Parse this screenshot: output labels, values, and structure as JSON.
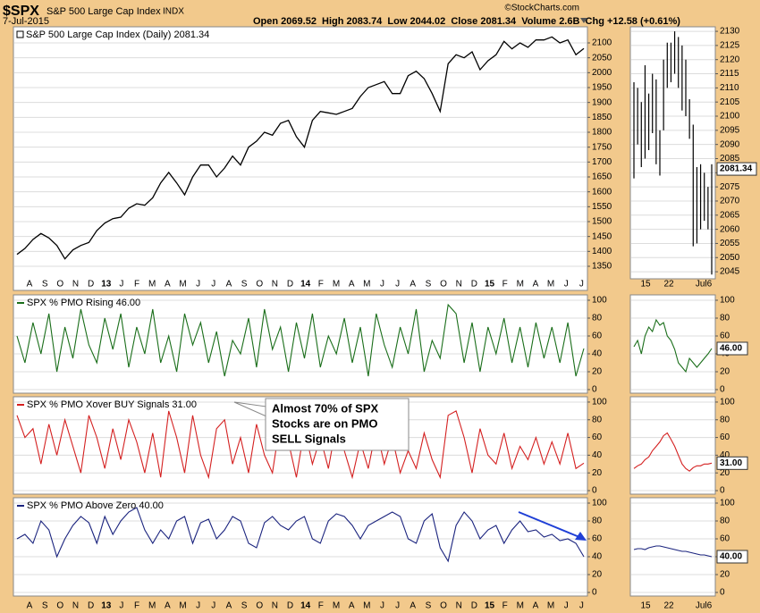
{
  "header": {
    "symbol": "$SPX",
    "name": "S&P 500 Large Cap Index",
    "exchange": "INDX",
    "date": "7-Jul-2015",
    "quote": "Open 2069.52  High 2083.74  Low 2044.02  Close 2081.34  Volume 2.6B  Chg +12.58 (+0.61%)",
    "copyright": "©StockCharts.com"
  },
  "month_labels": [
    "A",
    "S",
    "O",
    "N",
    "D",
    "13",
    "J",
    "F",
    "M",
    "A",
    "M",
    "J",
    "J",
    "A",
    "S",
    "O",
    "N",
    "D",
    "14",
    "F",
    "M",
    "A",
    "M",
    "J",
    "J",
    "A",
    "S",
    "O",
    "N",
    "D",
    "15",
    "F",
    "M",
    "A",
    "M",
    "J",
    "J"
  ],
  "mini_labels": [
    "15",
    "22",
    "Jul6"
  ],
  "chart_data": [
    {
      "type": "line",
      "title": "S&P 500 Large Cap Index (Daily) 2081.34",
      "color": "#000000",
      "ylim": [
        1269,
        2154
      ],
      "yticks": [
        1350,
        1400,
        1450,
        1500,
        1550,
        1600,
        1650,
        1700,
        1750,
        1800,
        1850,
        1900,
        1950,
        2000,
        2050,
        2100
      ],
      "grid": true,
      "values": [
        1390,
        1410,
        1440,
        1460,
        1445,
        1420,
        1375,
        1405,
        1420,
        1430,
        1470,
        1495,
        1510,
        1515,
        1545,
        1560,
        1555,
        1580,
        1630,
        1665,
        1630,
        1590,
        1650,
        1690,
        1690,
        1650,
        1680,
        1720,
        1690,
        1750,
        1770,
        1800,
        1790,
        1830,
        1840,
        1785,
        1750,
        1840,
        1870,
        1865,
        1860,
        1870,
        1880,
        1920,
        1950,
        1960,
        1970,
        1930,
        1930,
        1990,
        2005,
        1980,
        1930,
        1870,
        2030,
        2060,
        2050,
        2070,
        2010,
        2040,
        2060,
        2105,
        2080,
        2100,
        2085,
        2110,
        2110,
        2120,
        2100,
        2110,
        2060,
        2081.34
      ]
    },
    {
      "type": "ohlc",
      "color": "#000000",
      "ylim": [
        2042.5,
        2131.6
      ],
      "yticks": [
        2045,
        2050,
        2055,
        2060,
        2065,
        2070,
        2075,
        2080,
        2085,
        2090,
        2095,
        2100,
        2105,
        2110,
        2115,
        2120,
        2125,
        2130
      ],
      "grid": true,
      "highs": [
        2112,
        2110,
        2105,
        2118,
        2108,
        2115,
        2113,
        2095,
        2120,
        2126,
        2126,
        2130,
        2128,
        2125,
        2120,
        2106,
        2097,
        2082,
        2083,
        2080,
        2075,
        2083
      ],
      "lows": [
        2078,
        2090,
        2082,
        2085,
        2088,
        2094,
        2083,
        2079,
        2095,
        2110,
        2112,
        2115,
        2110,
        2102,
        2100,
        2092,
        2054,
        2055,
        2060,
        2063,
        2060,
        2044
      ],
      "last_value": 2081.34
    },
    {
      "type": "line",
      "title": "SPX % PMO Rising 46.00",
      "color": "#1a6e1a",
      "ylim": [
        -4,
        106
      ],
      "yticks": [
        0,
        20,
        40,
        60,
        80,
        100
      ],
      "grid": true,
      "values": [
        60,
        30,
        75,
        40,
        85,
        20,
        70,
        35,
        90,
        50,
        30,
        80,
        45,
        85,
        25,
        70,
        40,
        90,
        30,
        60,
        20,
        85,
        50,
        75,
        30,
        65,
        15,
        55,
        40,
        80,
        25,
        90,
        45,
        70,
        20,
        75,
        35,
        85,
        25,
        60,
        40,
        80,
        30,
        70,
        15,
        85,
        50,
        25,
        70,
        40,
        90,
        20,
        55,
        35,
        95,
        85,
        30,
        75,
        20,
        70,
        40,
        80,
        30,
        70,
        25,
        75,
        35,
        70,
        30,
        75,
        15,
        46
      ]
    },
    {
      "type": "line",
      "color": "#1a6e1a",
      "ylim": [
        -4,
        106
      ],
      "yticks": [
        0,
        20,
        40,
        60,
        80,
        100
      ],
      "grid": true,
      "values": [
        48,
        55,
        40,
        60,
        70,
        65,
        78,
        72,
        75,
        60,
        55,
        45,
        30,
        25,
        20,
        35,
        30,
        25,
        30,
        35,
        40,
        46
      ],
      "last_value": {
        "value": 46,
        "label": "46.00"
      }
    },
    {
      "type": "line",
      "title": "SPX % PMO Xover BUY Signals 31.00",
      "color": "#d42020",
      "ylim": [
        -4,
        106
      ],
      "yticks": [
        0,
        20,
        40,
        60,
        80,
        100
      ],
      "grid": true,
      "values": [
        85,
        60,
        70,
        30,
        75,
        40,
        80,
        50,
        20,
        85,
        60,
        25,
        70,
        35,
        80,
        55,
        20,
        65,
        15,
        90,
        60,
        20,
        85,
        40,
        15,
        70,
        80,
        30,
        60,
        20,
        75,
        40,
        20,
        80,
        55,
        15,
        70,
        30,
        60,
        25,
        75,
        45,
        15,
        55,
        25,
        70,
        30,
        60,
        20,
        45,
        25,
        65,
        35,
        15,
        85,
        90,
        60,
        20,
        70,
        40,
        30,
        65,
        25,
        50,
        35,
        60,
        30,
        55,
        30,
        65,
        25,
        31
      ],
      "annotation": [
        "Almost 70% of SPX",
        "Stocks are on PMO",
        "SELL Signals"
      ]
    },
    {
      "type": "line",
      "color": "#d42020",
      "ylim": [
        -4,
        106
      ],
      "yticks": [
        0,
        20,
        40,
        60,
        80,
        100
      ],
      "grid": true,
      "values": [
        25,
        28,
        30,
        35,
        38,
        45,
        50,
        55,
        62,
        65,
        58,
        50,
        40,
        30,
        25,
        22,
        26,
        28,
        28,
        30,
        30,
        31
      ],
      "last_value": {
        "value": 31,
        "label": "31.00"
      }
    },
    {
      "type": "line",
      "title": "SPX % PMO Above Zero 40.00",
      "color": "#1a237e",
      "ylim": [
        -4,
        106
      ],
      "yticks": [
        0,
        20,
        40,
        60,
        80,
        100
      ],
      "grid": true,
      "values": [
        60,
        65,
        55,
        80,
        70,
        40,
        60,
        75,
        85,
        78,
        55,
        85,
        65,
        80,
        90,
        95,
        70,
        55,
        70,
        60,
        80,
        85,
        55,
        78,
        82,
        60,
        70,
        85,
        80,
        55,
        50,
        78,
        85,
        75,
        70,
        80,
        85,
        60,
        55,
        80,
        88,
        85,
        75,
        60,
        75,
        80,
        85,
        90,
        85,
        60,
        55,
        80,
        88,
        50,
        35,
        75,
        90,
        80,
        60,
        70,
        75,
        55,
        70,
        80,
        68,
        70,
        62,
        65,
        58,
        60,
        55,
        40
      ]
    },
    {
      "type": "line",
      "color": "#1a237e",
      "ylim": [
        -4,
        106
      ],
      "yticks": [
        0,
        20,
        40,
        60,
        80,
        100
      ],
      "grid": true,
      "values": [
        48,
        49,
        49,
        48,
        50,
        51,
        52,
        52,
        51,
        50,
        49,
        48,
        47,
        46,
        46,
        45,
        44,
        43,
        42,
        42,
        41,
        40
      ],
      "last_value": {
        "value": 40,
        "label": "40.00"
      }
    }
  ]
}
